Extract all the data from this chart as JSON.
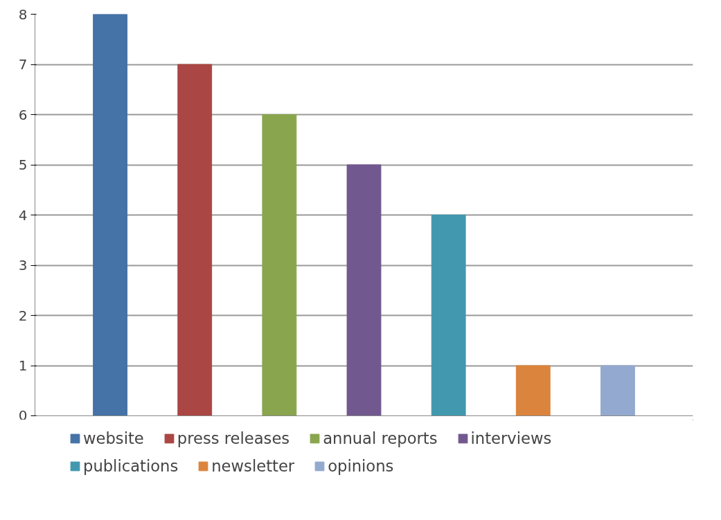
{
  "chart_data": {
    "type": "bar",
    "categories": [
      null
    ],
    "series": [
      {
        "name": "website",
        "color": "#4572a7",
        "values": [
          8
        ]
      },
      {
        "name": "press releases",
        "color": "#aa4643",
        "values": [
          7
        ]
      },
      {
        "name": "annual reports",
        "color": "#89a54e",
        "values": [
          6
        ]
      },
      {
        "name": "interviews",
        "color": "#71588f",
        "values": [
          5
        ]
      },
      {
        "name": "publications",
        "color": "#4198af",
        "values": [
          4
        ]
      },
      {
        "name": "newsletter",
        "color": "#db843d",
        "values": [
          1
        ]
      },
      {
        "name": "opinions",
        "color": "#93a9cf",
        "values": [
          1
        ]
      }
    ],
    "ylim": [
      0,
      8
    ],
    "yticks": [
      0,
      1,
      2,
      3,
      4,
      5,
      6,
      7,
      8
    ],
    "grid": "y",
    "legend": "bottom",
    "tick_labels": "y"
  }
}
